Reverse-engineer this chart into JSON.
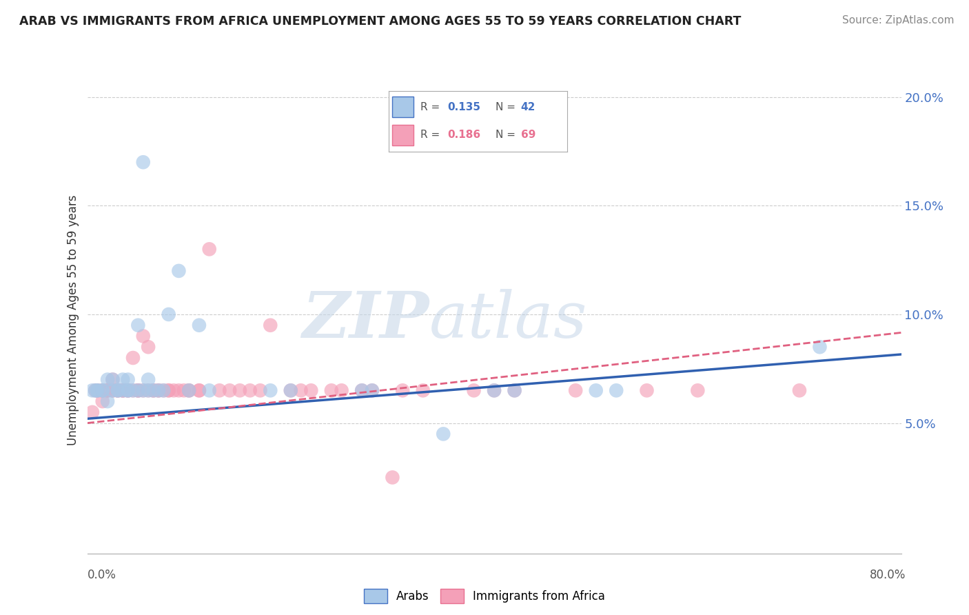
{
  "title": "ARAB VS IMMIGRANTS FROM AFRICA UNEMPLOYMENT AMONG AGES 55 TO 59 YEARS CORRELATION CHART",
  "source": "Source: ZipAtlas.com",
  "ylabel": "Unemployment Among Ages 55 to 59 years",
  "xlim": [
    0,
    0.8
  ],
  "ylim": [
    -0.01,
    0.205
  ],
  "yticks": [
    0.0,
    0.05,
    0.1,
    0.15,
    0.2
  ],
  "ytick_labels": [
    "",
    "5.0%",
    "10.0%",
    "15.0%",
    "20.0%"
  ],
  "arab_color": "#a8c8e8",
  "africa_color": "#f4a0b8",
  "arab_line_color": "#3060b0",
  "africa_line_color": "#e06080",
  "watermark_zip": "ZIP",
  "watermark_atlas": "atlas",
  "arab_x": [
    0.005,
    0.008,
    0.01,
    0.01,
    0.015,
    0.015,
    0.02,
    0.02,
    0.025,
    0.025,
    0.03,
    0.03,
    0.035,
    0.035,
    0.04,
    0.04,
    0.04,
    0.045,
    0.05,
    0.05,
    0.055,
    0.055,
    0.06,
    0.06,
    0.065,
    0.07,
    0.075,
    0.08,
    0.09,
    0.1,
    0.11,
    0.12,
    0.18,
    0.2,
    0.27,
    0.28,
    0.35,
    0.4,
    0.42,
    0.5,
    0.52,
    0.72
  ],
  "arab_y": [
    0.065,
    0.065,
    0.065,
    0.065,
    0.065,
    0.065,
    0.07,
    0.06,
    0.07,
    0.065,
    0.065,
    0.065,
    0.07,
    0.065,
    0.07,
    0.065,
    0.065,
    0.065,
    0.065,
    0.095,
    0.065,
    0.17,
    0.065,
    0.07,
    0.065,
    0.065,
    0.065,
    0.1,
    0.12,
    0.065,
    0.095,
    0.065,
    0.065,
    0.065,
    0.065,
    0.065,
    0.045,
    0.065,
    0.065,
    0.065,
    0.065,
    0.085
  ],
  "africa_x": [
    0.005,
    0.008,
    0.01,
    0.01,
    0.015,
    0.015,
    0.015,
    0.02,
    0.02,
    0.02,
    0.025,
    0.025,
    0.025,
    0.03,
    0.03,
    0.03,
    0.035,
    0.035,
    0.035,
    0.04,
    0.04,
    0.04,
    0.045,
    0.045,
    0.05,
    0.05,
    0.05,
    0.055,
    0.055,
    0.06,
    0.06,
    0.065,
    0.065,
    0.07,
    0.07,
    0.075,
    0.08,
    0.08,
    0.085,
    0.09,
    0.095,
    0.1,
    0.1,
    0.11,
    0.11,
    0.12,
    0.13,
    0.14,
    0.15,
    0.16,
    0.17,
    0.18,
    0.2,
    0.21,
    0.22,
    0.24,
    0.25,
    0.27,
    0.28,
    0.3,
    0.31,
    0.33,
    0.38,
    0.4,
    0.42,
    0.48,
    0.55,
    0.6,
    0.7
  ],
  "africa_y": [
    0.055,
    0.065,
    0.065,
    0.065,
    0.06,
    0.065,
    0.065,
    0.065,
    0.065,
    0.065,
    0.07,
    0.065,
    0.065,
    0.065,
    0.065,
    0.065,
    0.065,
    0.065,
    0.065,
    0.065,
    0.065,
    0.065,
    0.065,
    0.08,
    0.065,
    0.065,
    0.065,
    0.09,
    0.065,
    0.085,
    0.065,
    0.065,
    0.065,
    0.065,
    0.065,
    0.065,
    0.065,
    0.065,
    0.065,
    0.065,
    0.065,
    0.065,
    0.065,
    0.065,
    0.065,
    0.13,
    0.065,
    0.065,
    0.065,
    0.065,
    0.065,
    0.095,
    0.065,
    0.065,
    0.065,
    0.065,
    0.065,
    0.065,
    0.065,
    0.025,
    0.065,
    0.065,
    0.065,
    0.065,
    0.065,
    0.065,
    0.065,
    0.065,
    0.065
  ]
}
